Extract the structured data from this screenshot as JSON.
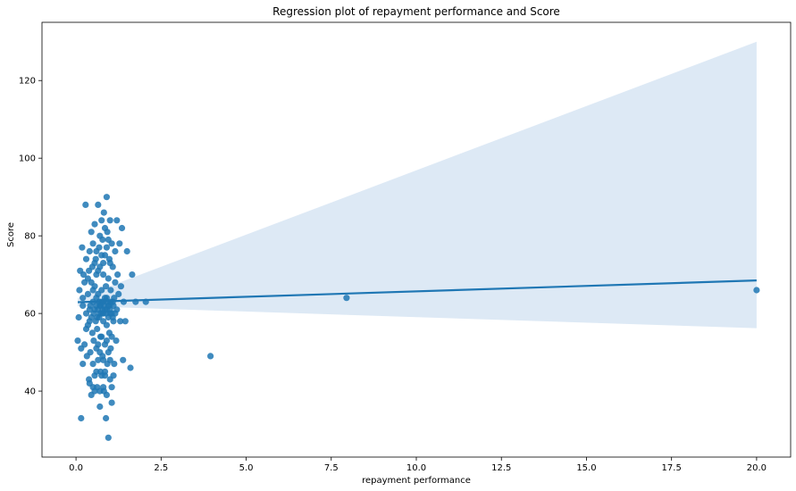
{
  "chart_data": {
    "type": "scatter",
    "title": "Regression plot of repayment performance and Score",
    "xlabel": "repayment performance",
    "ylabel": "Score",
    "xlim": [
      -1.0,
      21.0
    ],
    "ylim": [
      23,
      135
    ],
    "xticks": [
      0.0,
      2.5,
      5.0,
      7.5,
      10.0,
      12.5,
      15.0,
      17.5,
      20.0
    ],
    "xtick_labels": [
      "0.0",
      "2.5",
      "5.0",
      "7.5",
      "10.0",
      "12.5",
      "15.0",
      "17.5",
      "20.0"
    ],
    "yticks": [
      40,
      60,
      80,
      100,
      120
    ],
    "ytick_labels": [
      "40",
      "60",
      "80",
      "100",
      "120"
    ],
    "grid": false,
    "colors": {
      "points": "#1f77b4",
      "line": "#1f77b4",
      "band": "#c6dbef"
    },
    "points": [
      [
        0.05,
        53
      ],
      [
        0.08,
        59
      ],
      [
        0.1,
        66
      ],
      [
        0.12,
        71
      ],
      [
        0.15,
        33
      ],
      [
        0.15,
        51
      ],
      [
        0.18,
        77
      ],
      [
        0.2,
        47
      ],
      [
        0.2,
        62
      ],
      [
        0.22,
        70
      ],
      [
        0.25,
        68
      ],
      [
        0.25,
        52
      ],
      [
        0.28,
        88
      ],
      [
        0.3,
        60
      ],
      [
        0.3,
        74
      ],
      [
        0.32,
        49
      ],
      [
        0.35,
        57
      ],
      [
        0.35,
        65
      ],
      [
        0.38,
        71
      ],
      [
        0.38,
        43
      ],
      [
        0.4,
        76
      ],
      [
        0.4,
        58
      ],
      [
        0.42,
        62
      ],
      [
        0.42,
        50
      ],
      [
        0.45,
        68
      ],
      [
        0.45,
        81
      ],
      [
        0.45,
        39
      ],
      [
        0.48,
        55
      ],
      [
        0.48,
        72
      ],
      [
        0.5,
        47
      ],
      [
        0.5,
        63
      ],
      [
        0.5,
        78
      ],
      [
        0.52,
        60
      ],
      [
        0.52,
        53
      ],
      [
        0.55,
        83
      ],
      [
        0.55,
        67
      ],
      [
        0.55,
        44
      ],
      [
        0.58,
        58
      ],
      [
        0.58,
        74
      ],
      [
        0.6,
        51
      ],
      [
        0.6,
        62
      ],
      [
        0.6,
        70
      ],
      [
        0.62,
        41
      ],
      [
        0.62,
        56
      ],
      [
        0.65,
        88
      ],
      [
        0.65,
        65
      ],
      [
        0.65,
        48
      ],
      [
        0.68,
        77
      ],
      [
        0.68,
        59
      ],
      [
        0.7,
        36
      ],
      [
        0.7,
        62
      ],
      [
        0.7,
        72
      ],
      [
        0.72,
        54
      ],
      [
        0.72,
        45
      ],
      [
        0.75,
        84
      ],
      [
        0.75,
        66
      ],
      [
        0.75,
        60
      ],
      [
        0.78,
        79
      ],
      [
        0.78,
        49
      ],
      [
        0.8,
        58
      ],
      [
        0.8,
        63
      ],
      [
        0.8,
        70
      ],
      [
        0.82,
        86
      ],
      [
        0.82,
        40
      ],
      [
        0.85,
        75
      ],
      [
        0.85,
        61
      ],
      [
        0.85,
        52
      ],
      [
        0.88,
        33
      ],
      [
        0.88,
        67
      ],
      [
        0.9,
        90
      ],
      [
        0.9,
        64
      ],
      [
        0.9,
        57
      ],
      [
        0.92,
        81
      ],
      [
        0.92,
        47
      ],
      [
        0.95,
        28
      ],
      [
        0.95,
        62
      ],
      [
        0.95,
        69
      ],
      [
        0.98,
        74
      ],
      [
        0.98,
        55
      ],
      [
        1.0,
        43
      ],
      [
        1.0,
        60
      ],
      [
        1.0,
        84
      ],
      [
        1.02,
        66
      ],
      [
        1.02,
        51
      ],
      [
        1.05,
        78
      ],
      [
        1.05,
        37
      ],
      [
        1.08,
        63
      ],
      [
        1.08,
        72
      ],
      [
        1.1,
        58
      ],
      [
        1.12,
        47
      ],
      [
        1.15,
        76
      ],
      [
        1.15,
        68
      ],
      [
        1.18,
        53
      ],
      [
        1.2,
        84
      ],
      [
        1.2,
        61
      ],
      [
        1.22,
        70
      ],
      [
        1.25,
        65
      ],
      [
        1.28,
        78
      ],
      [
        1.3,
        58
      ],
      [
        1.32,
        67
      ],
      [
        1.35,
        82
      ],
      [
        1.38,
        48
      ],
      [
        1.4,
        63
      ],
      [
        1.45,
        58
      ],
      [
        1.5,
        76
      ],
      [
        1.6,
        46
      ],
      [
        1.65,
        70
      ],
      [
        1.75,
        63
      ],
      [
        2.05,
        63
      ],
      [
        3.95,
        49
      ],
      [
        7.95,
        64
      ],
      [
        20.0,
        66
      ],
      [
        0.2,
        64
      ],
      [
        0.3,
        56
      ],
      [
        0.35,
        69
      ],
      [
        0.4,
        61
      ],
      [
        0.45,
        59
      ],
      [
        0.5,
        66
      ],
      [
        0.55,
        61
      ],
      [
        0.6,
        64
      ],
      [
        0.62,
        59
      ],
      [
        0.65,
        61
      ],
      [
        0.68,
        63
      ],
      [
        0.7,
        60
      ],
      [
        0.72,
        62
      ],
      [
        0.75,
        63
      ],
      [
        0.78,
        61
      ],
      [
        0.8,
        60
      ],
      [
        0.82,
        62
      ],
      [
        0.85,
        64
      ],
      [
        0.88,
        60
      ],
      [
        0.9,
        61
      ],
      [
        0.92,
        63
      ],
      [
        0.95,
        59
      ],
      [
        0.98,
        62
      ],
      [
        1.0,
        61
      ],
      [
        1.02,
        63
      ],
      [
        1.05,
        60
      ],
      [
        1.08,
        59
      ],
      [
        1.1,
        62
      ],
      [
        1.12,
        64
      ],
      [
        1.15,
        60
      ],
      [
        0.55,
        73
      ],
      [
        0.6,
        76
      ],
      [
        0.65,
        71
      ],
      [
        0.7,
        80
      ],
      [
        0.75,
        75
      ],
      [
        0.8,
        73
      ],
      [
        0.85,
        82
      ],
      [
        0.9,
        77
      ],
      [
        0.95,
        79
      ],
      [
        1.0,
        73
      ],
      [
        0.6,
        45
      ],
      [
        0.65,
        52
      ],
      [
        0.7,
        50
      ],
      [
        0.75,
        54
      ],
      [
        0.8,
        48
      ],
      [
        0.85,
        45
      ],
      [
        0.9,
        53
      ],
      [
        0.95,
        50
      ],
      [
        1.0,
        48
      ],
      [
        1.05,
        54
      ],
      [
        0.7,
        40
      ],
      [
        0.75,
        44
      ],
      [
        0.8,
        41
      ],
      [
        0.85,
        44
      ],
      [
        0.9,
        39
      ],
      [
        1.05,
        41
      ],
      [
        1.1,
        44
      ],
      [
        0.5,
        41
      ],
      [
        0.55,
        40
      ],
      [
        0.4,
        42
      ]
    ],
    "regression": {
      "x": [
        0.05,
        20.0
      ],
      "y": [
        62.9,
        68.5
      ],
      "ci_upper": [
        63.9,
        130.0
      ],
      "ci_lower": [
        61.9,
        56.2
      ]
    }
  }
}
